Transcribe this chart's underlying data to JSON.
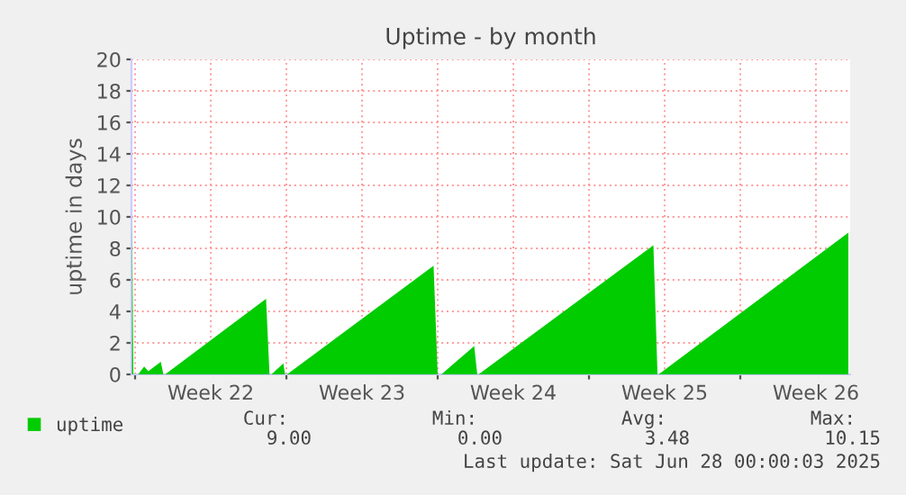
{
  "chart_data": {
    "type": "area",
    "title": "Uptime - by month",
    "ylabel": "uptime in days",
    "series": [
      {
        "name": "uptime",
        "color": "#00cc00",
        "x": [
          "2025-05-25T20:36",
          "2025-05-25T22:05",
          "2025-05-26T03:22",
          "2025-05-26T10:05",
          "2025-05-26T14:38",
          "2025-05-27T04:34",
          "2025-05-27T07:26",
          "2025-05-27T09:22",
          "2025-06-01T01:26",
          "2025-06-01T05:17",
          "2025-06-01T07:26",
          "2025-06-01T20:38",
          "2025-06-01T22:34",
          "2025-06-02T00:43",
          "2025-06-08T19:26",
          "2025-06-09T00:00",
          "2025-06-09T04:05",
          "2025-06-10T16:34",
          "2025-06-10T19:55",
          "2025-06-10T21:22",
          "2025-06-18T23:31",
          "2025-06-19T04:05",
          "2025-06-19T05:17",
          "2025-06-28T00:00"
        ],
        "values": [
          10.2,
          0,
          0,
          0.5,
          0.2,
          0.8,
          0,
          0,
          4.8,
          0,
          0,
          0.7,
          0,
          0,
          6.9,
          0,
          0,
          1.8,
          0,
          0,
          8.2,
          0,
          0,
          9.0
        ]
      }
    ],
    "xlim": [
      "2025-05-25T20:00",
      "2025-06-28T02:00"
    ],
    "xticks": [
      {
        "value": "2025-05-26",
        "label": null
      },
      {
        "value": "2025-05-29T12:00",
        "label": "Week 22"
      },
      {
        "value": "2025-06-02",
        "label": null
      },
      {
        "value": "2025-06-05T12:00",
        "label": "Week 23"
      },
      {
        "value": "2025-06-09",
        "label": null
      },
      {
        "value": "2025-06-12T12:00",
        "label": "Week 24"
      },
      {
        "value": "2025-06-16",
        "label": null
      },
      {
        "value": "2025-06-19T12:00",
        "label": "Week 25"
      },
      {
        "value": "2025-06-23",
        "label": null
      },
      {
        "value": "2025-06-26T12:00",
        "label": "Week 26"
      }
    ],
    "ylim": [
      0,
      20
    ],
    "yticks": [
      0,
      2,
      4,
      6,
      8,
      10,
      12,
      14,
      16,
      18,
      20
    ],
    "grid": true,
    "legend": "bottom left",
    "annotations": [
      "Cur:",
      "9.00",
      "Min:",
      "0.00",
      "Avg:",
      "3.48",
      "Max:",
      "10.15",
      "Last update: Sat Jun 28 00:00:03 2025"
    ]
  }
}
